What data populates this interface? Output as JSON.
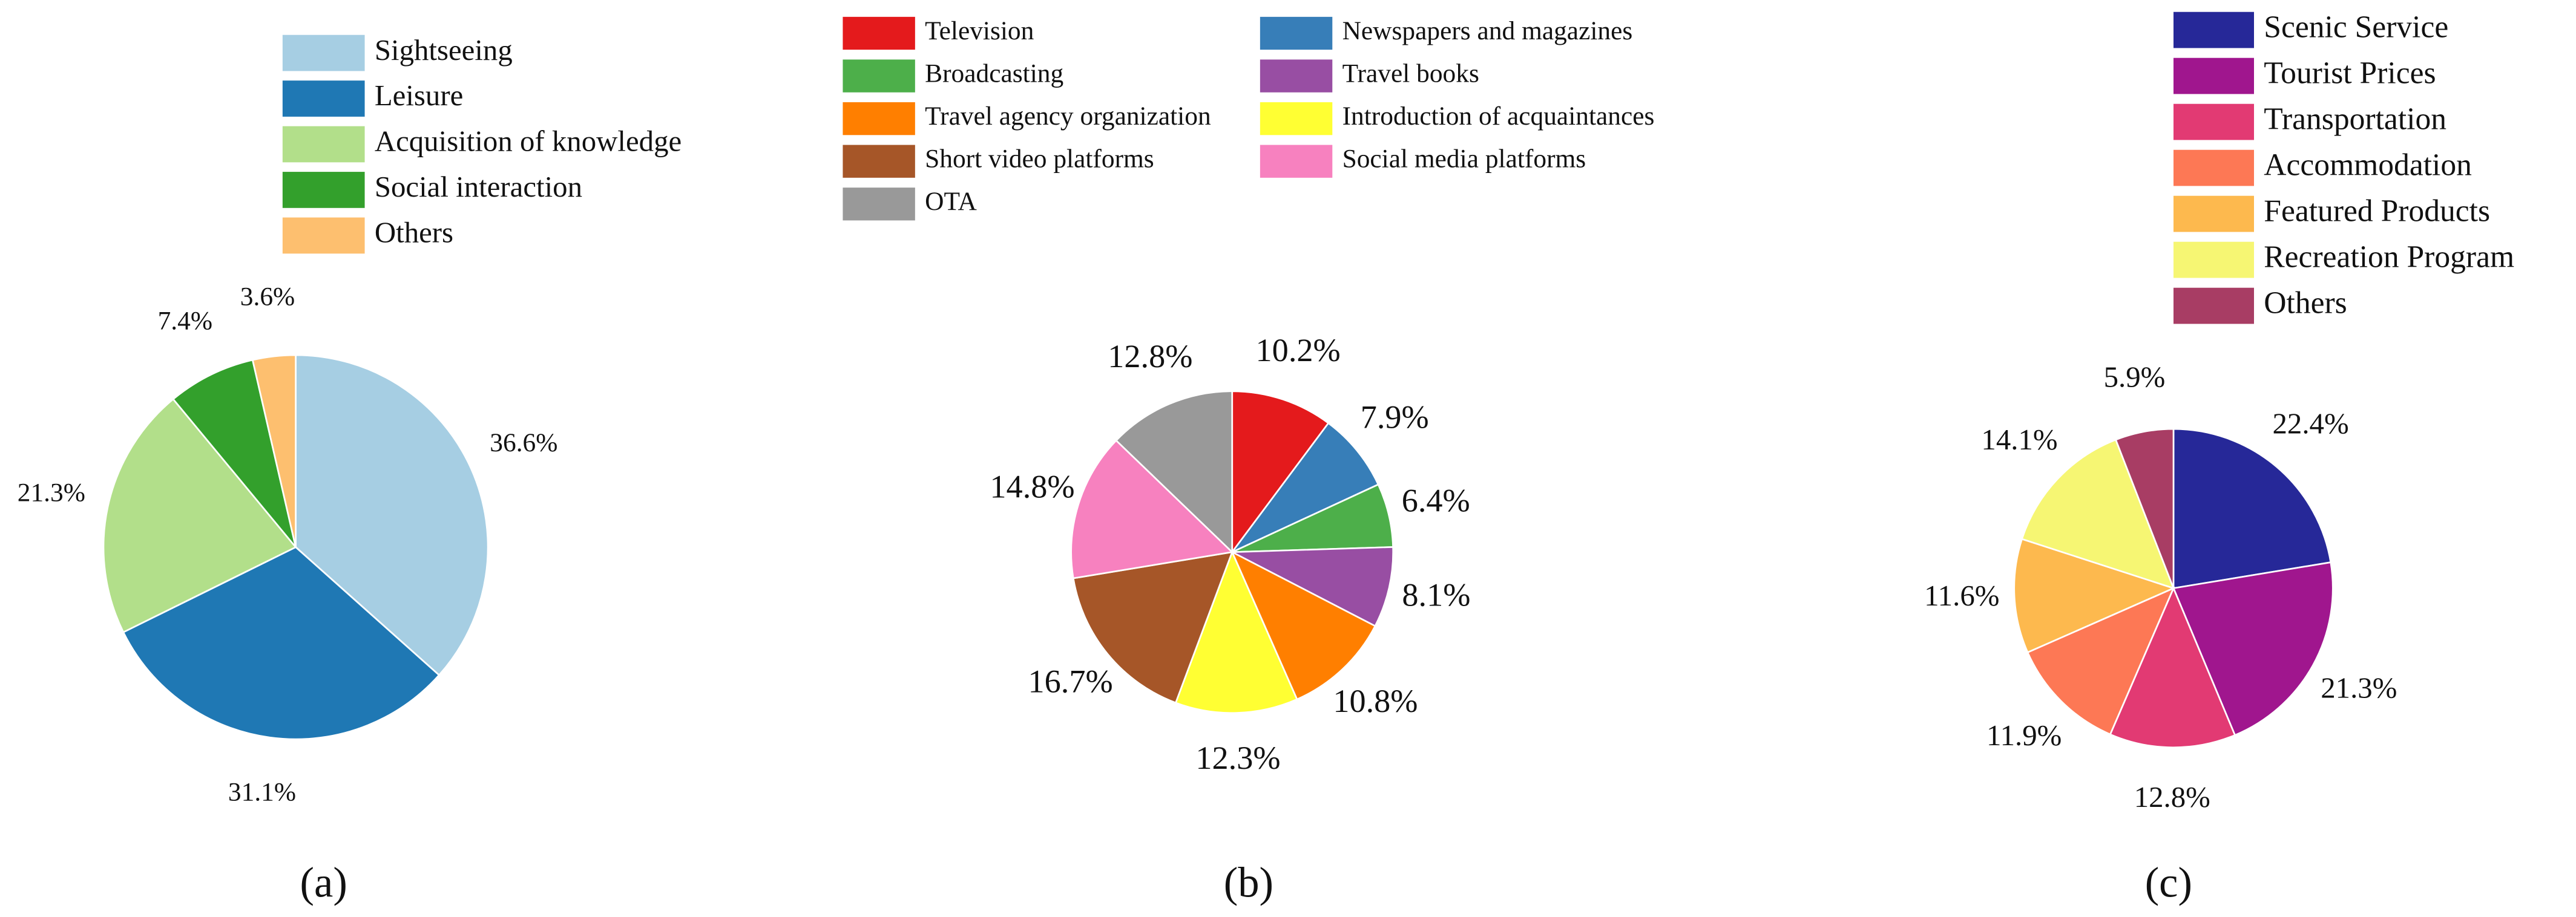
{
  "chart_data": [
    {
      "type": "pie",
      "label": "(a)",
      "categories": [
        "Sightseeing",
        "Leisure",
        "Acquisition of knowledge",
        "Social interaction",
        "Others"
      ],
      "values": [
        36.6,
        31.1,
        21.3,
        7.4,
        3.6
      ],
      "value_labels": [
        "36.6%",
        "31.1%",
        "21.3%",
        "7.4%",
        "3.6%"
      ],
      "colors": [
        "#a6cee3",
        "#1f78b4",
        "#b2df8a",
        "#33a02c",
        "#fdbf6f"
      ]
    },
    {
      "type": "pie",
      "label": "(b)",
      "categories": [
        "Television",
        "Newspapers and magazines",
        "Broadcasting",
        "Travel books",
        "Travel agency organization",
        "Introduction of acquaintances",
        "Short video platforms",
        "Social media platforms",
        "OTA"
      ],
      "values": [
        10.2,
        7.9,
        6.4,
        8.1,
        10.8,
        12.3,
        16.7,
        14.8,
        12.8
      ],
      "value_labels": [
        "10.2%",
        "7.9%",
        "6.4%",
        "8.1%",
        "10.8%",
        "12.3%",
        "16.7%",
        "14.8%",
        "12.8%"
      ],
      "colors": [
        "#e41a1c",
        "#377eb8",
        "#4daf4a",
        "#984ea3",
        "#ff7f00",
        "#ffff33",
        "#a65628",
        "#f781bf",
        "#999999"
      ]
    },
    {
      "type": "pie",
      "label": "(c)",
      "categories": [
        "Scenic Service",
        "Tourist Prices",
        "Transportation",
        "Accommodation",
        "Featured Products",
        "Recreation Program",
        "Others"
      ],
      "values": [
        22.4,
        21.3,
        12.8,
        11.9,
        11.6,
        14.1,
        5.9
      ],
      "value_labels": [
        "22.4%",
        "21.3%",
        "12.8%",
        "11.9%",
        "11.6%",
        "14.1%",
        "5.9%"
      ],
      "colors": [
        "#262898",
        "#a0168e",
        "#e23a73",
        "#fd7855",
        "#fdb94e",
        "#f6f673",
        "#a83d64"
      ]
    }
  ]
}
